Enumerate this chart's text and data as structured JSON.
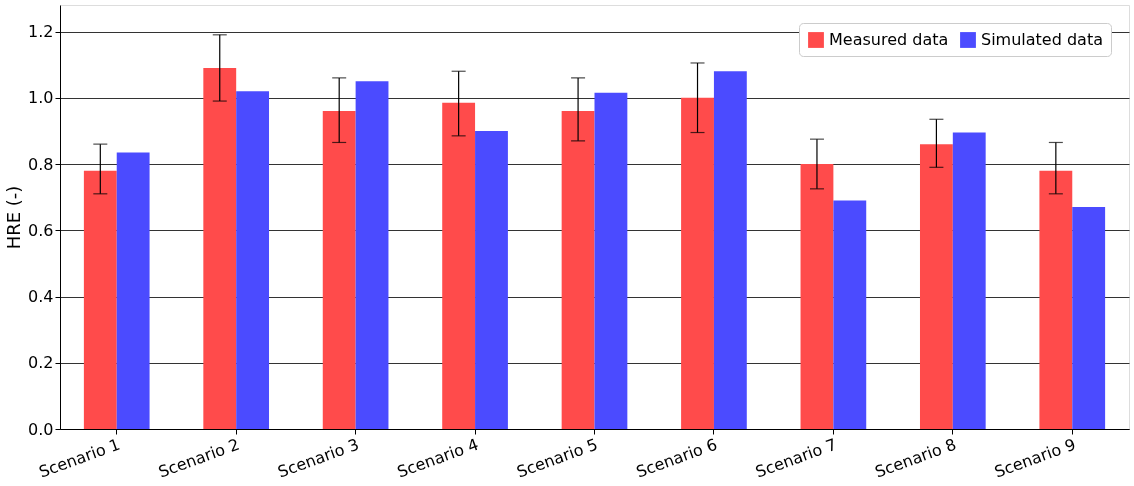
{
  "chart_data": {
    "type": "bar",
    "ylabel": "HRE (-)",
    "categories": [
      "Scenario 1",
      "Scenario 2",
      "Scenario 3",
      "Scenario 4",
      "Scenario 5",
      "Scenario 6",
      "Scenario 7",
      "Scenario 8",
      "Scenario 9"
    ],
    "series": [
      {
        "name": "Measured data",
        "color": "#ff4b4b",
        "values": [
          0.78,
          1.09,
          0.96,
          0.985,
          0.96,
          1.0,
          0.8,
          0.86,
          0.78
        ],
        "errors": [
          [
            0.71,
            0.86
          ],
          [
            0.99,
            1.19
          ],
          [
            0.865,
            1.06
          ],
          [
            0.885,
            1.08
          ],
          [
            0.87,
            1.06
          ],
          [
            0.895,
            1.105
          ],
          [
            0.725,
            0.875
          ],
          [
            0.79,
            0.935
          ],
          [
            0.71,
            0.865
          ]
        ]
      },
      {
        "name": "Simulated data",
        "color": "#4b4bff",
        "values": [
          0.835,
          1.02,
          1.05,
          0.9,
          1.015,
          1.08,
          0.69,
          0.895,
          0.67
        ]
      }
    ],
    "ylim": [
      0,
      1.28
    ],
    "yticks": [
      {
        "value": 0,
        "label": "0.0"
      },
      {
        "value": 0.2,
        "label": "0.2"
      },
      {
        "value": 0.4,
        "label": "0.4"
      },
      {
        "value": 0.6,
        "label": "0.6"
      },
      {
        "value": 0.8,
        "label": "0.8"
      },
      {
        "value": 1.0,
        "label": "1.0"
      },
      {
        "value": 1.2,
        "label": "1.2"
      }
    ],
    "grid": "y",
    "legend": "top right"
  }
}
